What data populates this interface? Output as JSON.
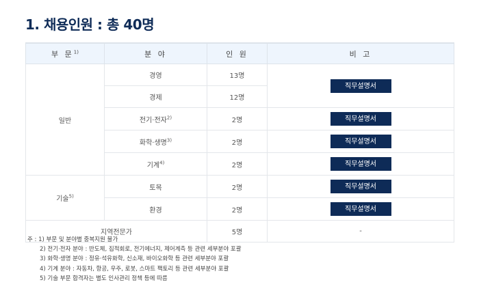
{
  "title": "1. 채용인원 : 총 40명",
  "headers": {
    "division": "부 문",
    "division_sup": "1)",
    "field": "분 야",
    "count": "인 원",
    "remarks": "비 고"
  },
  "rows": [
    {
      "division": "일반",
      "division_sup": "",
      "field": "경영",
      "field_sup": "",
      "count": "13명"
    },
    {
      "field": "경제",
      "field_sup": "",
      "count": "12명"
    },
    {
      "field": "전기·전자",
      "field_sup": "2)",
      "count": "2명"
    },
    {
      "field": "화학·생명",
      "field_sup": "3)",
      "count": "2명"
    },
    {
      "field": "기계",
      "field_sup": "4)",
      "count": "2명"
    },
    {
      "division": "기술",
      "division_sup": "5)",
      "field": "토목",
      "field_sup": "",
      "count": "2명"
    },
    {
      "field": "환경",
      "field_sup": "",
      "count": "2명"
    },
    {
      "field": "지역전문가",
      "count": "5명",
      "remarks": "-"
    }
  ],
  "job_desc_button": "직무설명서",
  "notes": {
    "prefix": "주 :",
    "items": [
      "1) 부문 및 분야별 중복지원 불가",
      "2) 전기·전자 분야 : 반도체, 집적회로, 전기에너지, 제어계측 등 관련 세부분야 포괄",
      "3) 화학·생명 분야 : 정유·석유화학, 신소재, 바이오화학 등 관련 세부분야 포괄",
      "4) 기계 분야 : 자동차, 항공, 우주, 로봇, 스마트 팩토리 등 관련 세부분야 포괄",
      "5) 기술 부문 합격자는 별도 인사관리 정책 등에 따름"
    ]
  },
  "colors": {
    "navy": "#0e2b57",
    "header_bg": "#eef5fd"
  }
}
